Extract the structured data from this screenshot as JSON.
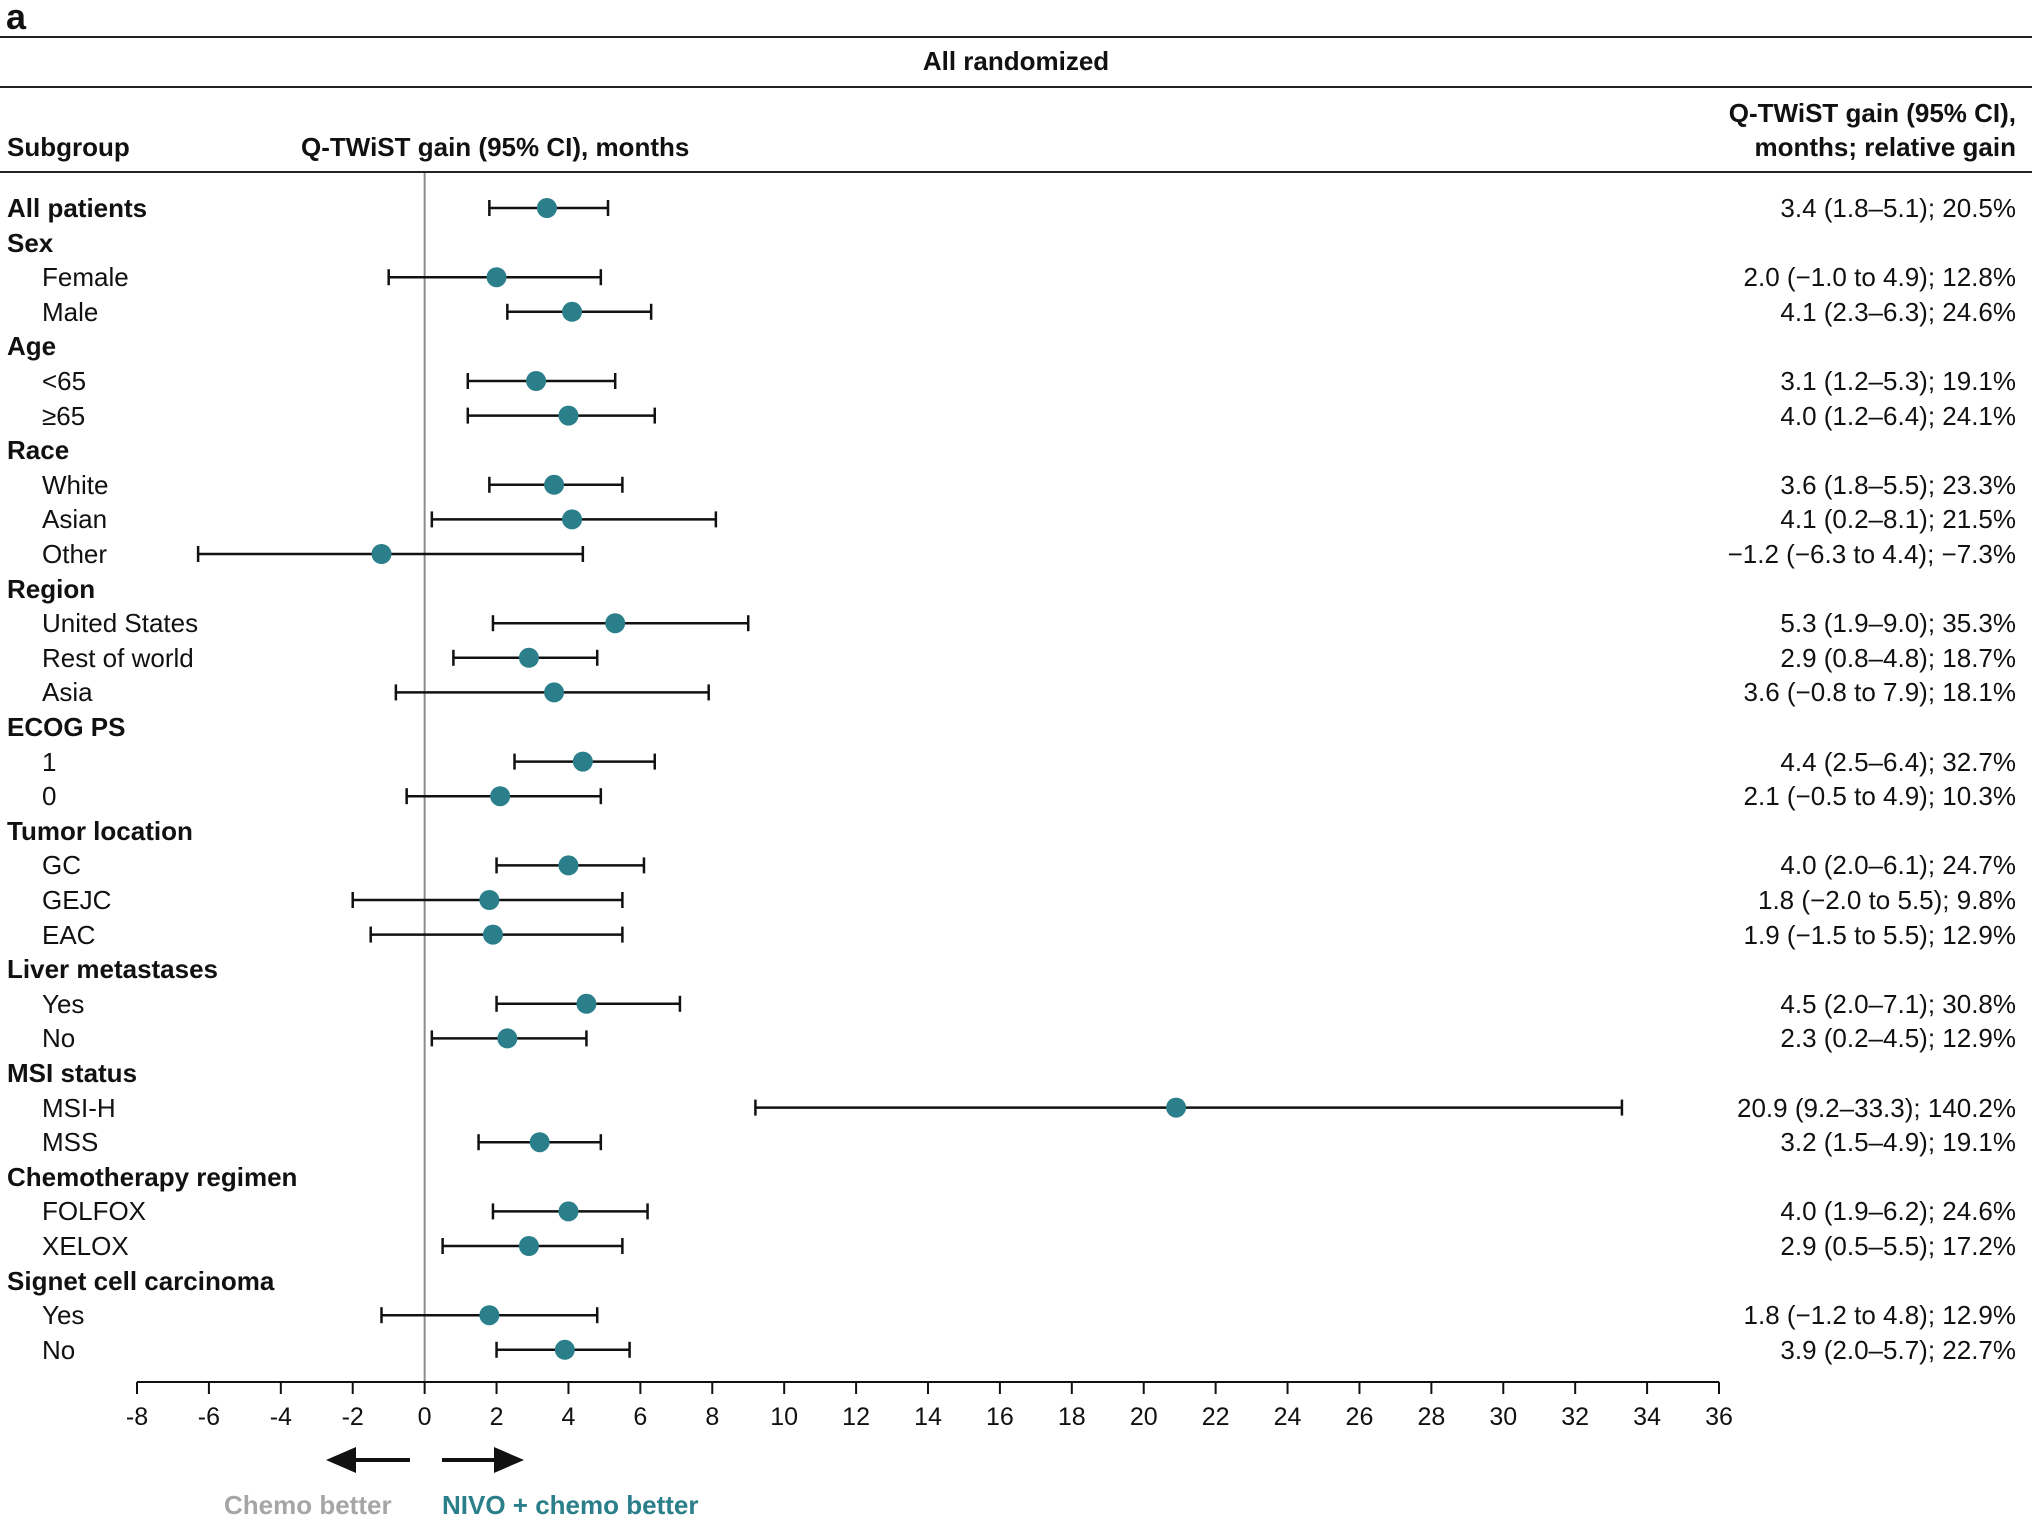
{
  "panel_label": "a",
  "banner": "All randomized",
  "headers": {
    "subgroup": "Subgroup",
    "plot": "Q-TWiST gain (95% CI), months",
    "value_line1": "Q-TWiST gain (95% CI),",
    "value_line2": "months; relative gain"
  },
  "directions": {
    "left": "Chemo better",
    "right": "NIVO + chemo better"
  },
  "colors": {
    "marker": "#2a7f8a",
    "left_caption": "#a6a6a6",
    "right_caption": "#2a7f8a",
    "ref_line": "#8c8c8c",
    "ink": "#111111"
  },
  "chart_data": {
    "type": "forest",
    "title": "All randomized",
    "xlabel": "Q-TWiST gain (95% CI), months",
    "xlim": [
      -8,
      36
    ],
    "xticks": [
      -8,
      -6,
      -4,
      -2,
      0,
      2,
      4,
      6,
      8,
      10,
      12,
      14,
      16,
      18,
      20,
      22,
      24,
      26,
      28,
      30,
      32,
      34,
      36
    ],
    "reference_line": 0,
    "rows": [
      {
        "label": "All patients",
        "group": true,
        "estimate": 3.4,
        "lo": 1.8,
        "hi": 5.1,
        "text": "3.4 (1.8–5.1); 20.5%"
      },
      {
        "label": "Sex",
        "group": true
      },
      {
        "label": "Female",
        "estimate": 2.0,
        "lo": -1.0,
        "hi": 4.9,
        "text": "2.0 (−1.0 to 4.9); 12.8%"
      },
      {
        "label": "Male",
        "estimate": 4.1,
        "lo": 2.3,
        "hi": 6.3,
        "text": "4.1 (2.3–6.3); 24.6%"
      },
      {
        "label": "Age",
        "group": true
      },
      {
        "label": "<65",
        "estimate": 3.1,
        "lo": 1.2,
        "hi": 5.3,
        "text": "3.1 (1.2–5.3); 19.1%"
      },
      {
        "label": "≥65",
        "estimate": 4.0,
        "lo": 1.2,
        "hi": 6.4,
        "text": "4.0 (1.2–6.4); 24.1%"
      },
      {
        "label": "Race",
        "group": true
      },
      {
        "label": "White",
        "estimate": 3.6,
        "lo": 1.8,
        "hi": 5.5,
        "text": "3.6 (1.8–5.5); 23.3%"
      },
      {
        "label": "Asian",
        "estimate": 4.1,
        "lo": 0.2,
        "hi": 8.1,
        "text": "4.1 (0.2–8.1); 21.5%"
      },
      {
        "label": "Other",
        "estimate": -1.2,
        "lo": -6.3,
        "hi": 4.4,
        "text": "−1.2 (−6.3 to 4.4); −7.3%"
      },
      {
        "label": "Region",
        "group": true
      },
      {
        "label": "United States",
        "estimate": 5.3,
        "lo": 1.9,
        "hi": 9.0,
        "text": "5.3 (1.9–9.0); 35.3%"
      },
      {
        "label": "Rest of world",
        "estimate": 2.9,
        "lo": 0.8,
        "hi": 4.8,
        "text": "2.9 (0.8–4.8); 18.7%"
      },
      {
        "label": "Asia",
        "estimate": 3.6,
        "lo": -0.8,
        "hi": 7.9,
        "text": "3.6 (−0.8 to 7.9); 18.1%"
      },
      {
        "label": "ECOG PS",
        "group": true
      },
      {
        "label": "1",
        "estimate": 4.4,
        "lo": 2.5,
        "hi": 6.4,
        "text": "4.4 (2.5–6.4); 32.7%"
      },
      {
        "label": "0",
        "estimate": 2.1,
        "lo": -0.5,
        "hi": 4.9,
        "text": "2.1 (−0.5 to 4.9); 10.3%"
      },
      {
        "label": "Tumor location",
        "group": true
      },
      {
        "label": "GC",
        "estimate": 4.0,
        "lo": 2.0,
        "hi": 6.1,
        "text": "4.0 (2.0–6.1); 24.7%"
      },
      {
        "label": "GEJC",
        "estimate": 1.8,
        "lo": -2.0,
        "hi": 5.5,
        "text": "1.8 (−2.0 to 5.5); 9.8%"
      },
      {
        "label": "EAC",
        "estimate": 1.9,
        "lo": -1.5,
        "hi": 5.5,
        "text": "1.9 (−1.5 to 5.5); 12.9%"
      },
      {
        "label": "Liver metastases",
        "group": true
      },
      {
        "label": "Yes",
        "estimate": 4.5,
        "lo": 2.0,
        "hi": 7.1,
        "text": "4.5 (2.0–7.1); 30.8%"
      },
      {
        "label": "No",
        "estimate": 2.3,
        "lo": 0.2,
        "hi": 4.5,
        "text": "2.3 (0.2–4.5); 12.9%"
      },
      {
        "label": "MSI status",
        "group": true
      },
      {
        "label": "MSI-H",
        "estimate": 20.9,
        "lo": 9.2,
        "hi": 33.3,
        "text": "20.9 (9.2–33.3); 140.2%"
      },
      {
        "label": "MSS",
        "estimate": 3.2,
        "lo": 1.5,
        "hi": 4.9,
        "text": "3.2 (1.5–4.9); 19.1%"
      },
      {
        "label": "Chemotherapy regimen",
        "group": true
      },
      {
        "label": "FOLFOX",
        "estimate": 4.0,
        "lo": 1.9,
        "hi": 6.2,
        "text": "4.0 (1.9–6.2); 24.6%"
      },
      {
        "label": "XELOX",
        "estimate": 2.9,
        "lo": 0.5,
        "hi": 5.5,
        "text": "2.9 (0.5–5.5); 17.2%"
      },
      {
        "label": "Signet cell carcinoma",
        "group": true
      },
      {
        "label": "Yes",
        "estimate": 1.8,
        "lo": -1.2,
        "hi": 4.8,
        "text": "1.8 (−1.2 to 4.8); 12.9%"
      },
      {
        "label": "No",
        "estimate": 3.9,
        "lo": 2.0,
        "hi": 5.7,
        "text": "3.9 (2.0–5.7); 22.7%"
      }
    ]
  }
}
